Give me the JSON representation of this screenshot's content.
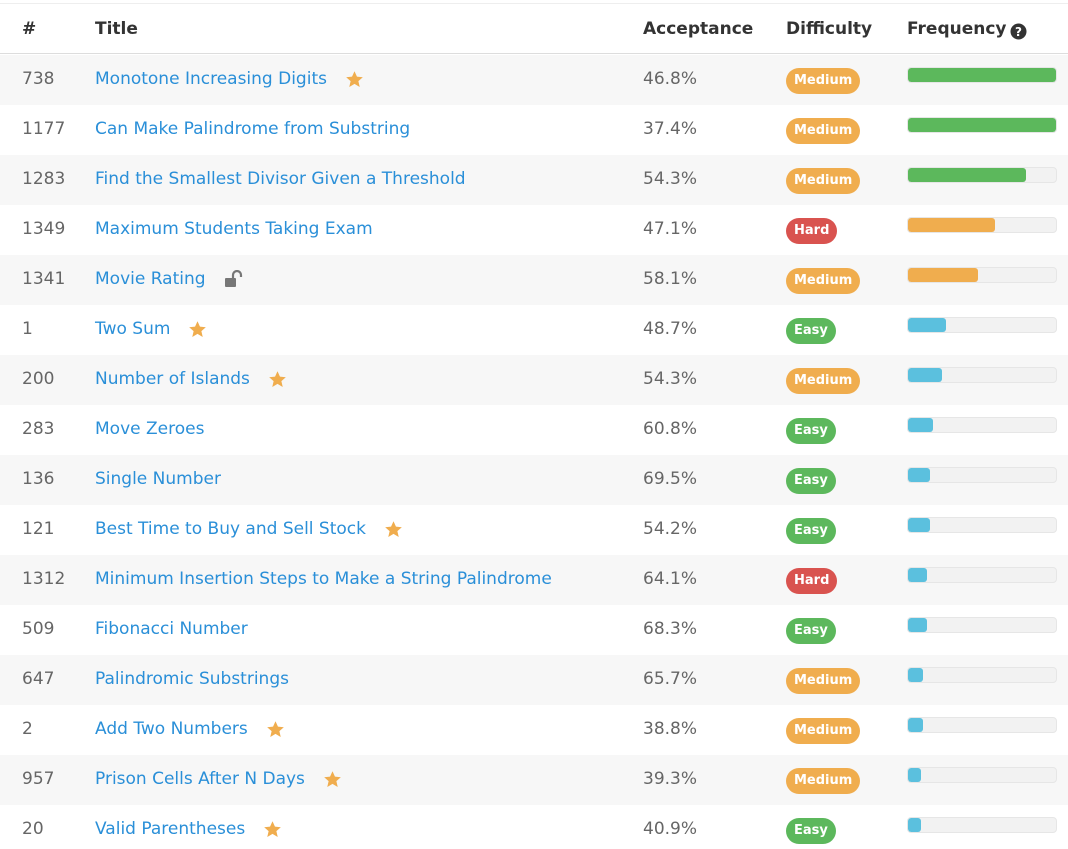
{
  "header": {
    "number": "#",
    "title": "Title",
    "acceptance": "Acceptance",
    "difficulty": "Difficulty",
    "frequency": "Frequency"
  },
  "difficulty_colors": {
    "Easy": "#5cb85c",
    "Medium": "#f0ad4e",
    "Hard": "#d9534f"
  },
  "rows": [
    {
      "number": "738",
      "title": "Monotone Increasing Digits",
      "icon": "star",
      "acceptance": "46.8%",
      "difficulty": "Medium",
      "frequency": 100,
      "frequency_color": "#5cb85c"
    },
    {
      "number": "1177",
      "title": "Can Make Palindrome from Substring",
      "acceptance": "37.4%",
      "difficulty": "Medium",
      "frequency": 100,
      "frequency_color": "#5cb85c"
    },
    {
      "number": "1283",
      "title": "Find the Smallest Divisor Given a Threshold",
      "acceptance": "54.3%",
      "difficulty": "Medium",
      "frequency": 80,
      "frequency_color": "#5cb85c"
    },
    {
      "number": "1349",
      "title": "Maximum Students Taking Exam",
      "acceptance": "47.1%",
      "difficulty": "Hard",
      "frequency": 59,
      "frequency_color": "#f0ad4e"
    },
    {
      "number": "1341",
      "title": "Movie Rating",
      "icon": "lock",
      "acceptance": "58.1%",
      "difficulty": "Medium",
      "frequency": 47,
      "frequency_color": "#f0ad4e"
    },
    {
      "number": "1",
      "title": "Two Sum",
      "icon": "star",
      "acceptance": "48.7%",
      "difficulty": "Easy",
      "frequency": 26,
      "frequency_color": "#5bc0de"
    },
    {
      "number": "200",
      "title": "Number of Islands",
      "icon": "star",
      "acceptance": "54.3%",
      "difficulty": "Medium",
      "frequency": 23,
      "frequency_color": "#5bc0de"
    },
    {
      "number": "283",
      "title": "Move Zeroes",
      "acceptance": "60.8%",
      "difficulty": "Easy",
      "frequency": 17,
      "frequency_color": "#5bc0de"
    },
    {
      "number": "136",
      "title": "Single Number",
      "acceptance": "69.5%",
      "difficulty": "Easy",
      "frequency": 15,
      "frequency_color": "#5bc0de"
    },
    {
      "number": "121",
      "title": "Best Time to Buy and Sell Stock",
      "icon": "star",
      "acceptance": "54.2%",
      "difficulty": "Easy",
      "frequency": 15,
      "frequency_color": "#5bc0de"
    },
    {
      "number": "1312",
      "title": "Minimum Insertion Steps to Make a String Palindrome",
      "acceptance": "64.1%",
      "difficulty": "Hard",
      "frequency": 13,
      "frequency_color": "#5bc0de"
    },
    {
      "number": "509",
      "title": "Fibonacci Number",
      "acceptance": "68.3%",
      "difficulty": "Easy",
      "frequency": 13,
      "frequency_color": "#5bc0de"
    },
    {
      "number": "647",
      "title": "Palindromic Substrings",
      "acceptance": "65.7%",
      "difficulty": "Medium",
      "frequency": 10,
      "frequency_color": "#5bc0de"
    },
    {
      "number": "2",
      "title": "Add Two Numbers",
      "icon": "star",
      "acceptance": "38.8%",
      "difficulty": "Medium",
      "frequency": 10,
      "frequency_color": "#5bc0de"
    },
    {
      "number": "957",
      "title": "Prison Cells After N Days",
      "icon": "star",
      "acceptance": "39.3%",
      "difficulty": "Medium",
      "frequency": 9,
      "frequency_color": "#5bc0de"
    },
    {
      "number": "20",
      "title": "Valid Parentheses",
      "icon": "star",
      "acceptance": "40.9%",
      "difficulty": "Easy",
      "frequency": 9,
      "frequency_color": "#5bc0de"
    }
  ]
}
